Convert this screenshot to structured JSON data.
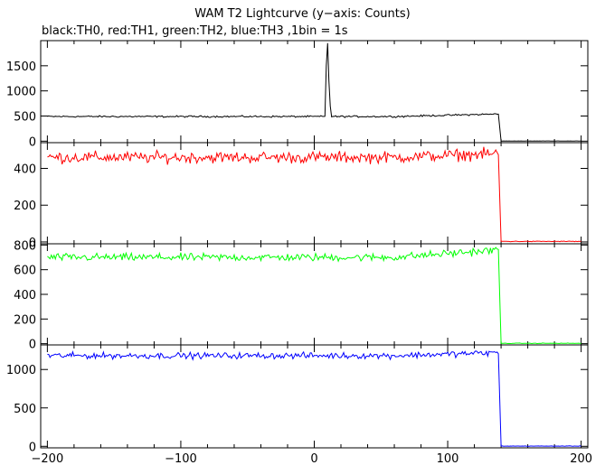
{
  "title": "WAM T2 Lightcurve (y−axis: Counts)",
  "subtitle": "black:TH0, red:TH1, green:TH2, blue:TH3 ,1bin = 1s",
  "chart_data": {
    "type": "line",
    "title": "WAM T2 Lightcurve (y−axis: Counts)",
    "subtitle": "black:TH0, red:TH1, green:TH2, blue:TH3 ,1bin = 1s",
    "xlim": [
      -205,
      205
    ],
    "x_ticks": [
      -200,
      -100,
      0,
      100,
      200
    ],
    "x_tick_labels": [
      "−200",
      "−100",
      "0",
      "100",
      "200"
    ],
    "panels": [
      {
        "name": "TH0",
        "color": "#000000",
        "ylim": [
          -30,
          2000
        ],
        "y_ticks": [
          0,
          500,
          1000,
          1500
        ],
        "baseline_before": 490,
        "baseline_end": 540,
        "noise": 12,
        "cutoff_x": 138,
        "after_level": 3,
        "spike": {
          "x": [
            9,
            10,
            11,
            12
          ],
          "y": [
            1500,
            1950,
            1200,
            700
          ]
        }
      },
      {
        "name": "TH1",
        "color": "#ff0000",
        "ylim": [
          -10,
          540
        ],
        "y_ticks": [
          0,
          200,
          400
        ],
        "baseline_before": 460,
        "baseline_end": 480,
        "noise": 22,
        "cutoff_x": 138,
        "after_level": 3,
        "spike": null
      },
      {
        "name": "TH2",
        "color": "#00ff00",
        "ylim": [
          -10,
          810
        ],
        "y_ticks": [
          0,
          200,
          400,
          600,
          800
        ],
        "baseline_before": 700,
        "baseline_end": 760,
        "noise": 22,
        "cutoff_x": 138,
        "after_level": 3,
        "spike": null
      },
      {
        "name": "TH3",
        "color": "#0000ff",
        "ylim": [
          -20,
          1320
        ],
        "y_ticks": [
          0,
          500,
          1000
        ],
        "baseline_before": 1180,
        "baseline_end": 1220,
        "noise": 28,
        "cutoff_x": 138,
        "after_level": 3,
        "spike": null
      }
    ]
  }
}
